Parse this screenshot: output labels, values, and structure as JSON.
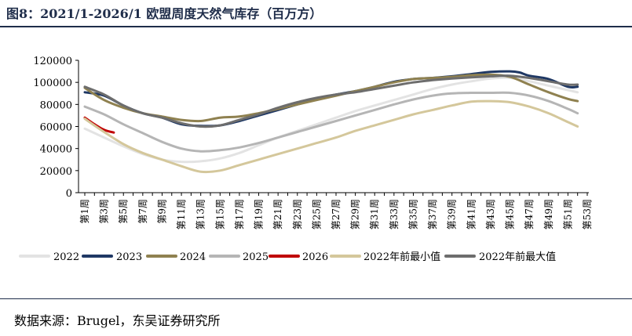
{
  "figure": {
    "title": "图8：2021/1-2026/1 欧盟周度天然气库存（百万方）",
    "source": "数据来源：Brugel，东吴证券研究所"
  },
  "chart_data": {
    "type": "line",
    "title": "",
    "xlabel": "",
    "ylabel": "",
    "ylim": [
      0,
      120000
    ],
    "yticks": [
      "0",
      "20000",
      "40000",
      "60000",
      "80000",
      "100000",
      "120000"
    ],
    "x_tick_labels": [
      "第1周",
      "第3周",
      "第5周",
      "第7周",
      "第9周",
      "第11周",
      "第13周",
      "第15周",
      "第17周",
      "第19周",
      "第21周",
      "第23周",
      "第25周",
      "第27周",
      "第29周",
      "第31周",
      "第33周",
      "第35周",
      "第37周",
      "第39周",
      "第41周",
      "第43周",
      "第45周",
      "第47周",
      "第49周",
      "第51周",
      "第53周"
    ],
    "x_week_range": [
      1,
      53
    ],
    "grid": false,
    "legend_position": "bottom",
    "series": [
      {
        "name": "2022",
        "color": "#e3e3e3",
        "width": 3,
        "weeks": [
          1,
          3,
          5,
          7,
          9,
          11,
          13,
          15,
          17,
          19,
          21,
          23,
          25,
          27,
          29,
          31,
          33,
          35,
          37,
          39,
          41,
          43,
          45,
          47,
          49,
          51,
          52
        ],
        "values": [
          58000,
          50000,
          42000,
          35000,
          30000,
          28000,
          28500,
          31000,
          36000,
          43000,
          50000,
          56000,
          62000,
          68000,
          74000,
          79000,
          84000,
          89000,
          94000,
          98000,
          101000,
          103500,
          104000,
          101000,
          97000,
          93000,
          91000
        ]
      },
      {
        "name": "2023",
        "color": "#1f3864",
        "width": 3,
        "weeks": [
          1,
          3,
          5,
          7,
          9,
          11,
          13,
          15,
          17,
          19,
          21,
          23,
          25,
          27,
          29,
          31,
          33,
          35,
          37,
          39,
          41,
          43,
          45,
          46,
          47,
          49,
          51,
          52
        ],
        "values": [
          91000,
          88000,
          79000,
          72000,
          68000,
          62000,
          60500,
          61000,
          65000,
          70000,
          75000,
          80000,
          85000,
          89000,
          92000,
          96000,
          100500,
          103000,
          104000,
          105500,
          107500,
          109500,
          110000,
          109000,
          106000,
          103000,
          96000,
          96000
        ]
      },
      {
        "name": "2024",
        "color": "#8f8150",
        "width": 3,
        "weeks": [
          1,
          3,
          5,
          7,
          9,
          11,
          13,
          15,
          17,
          19,
          21,
          23,
          25,
          27,
          29,
          31,
          33,
          35,
          37,
          39,
          41,
          43,
          45,
          47,
          49,
          51,
          52
        ],
        "values": [
          95000,
          84000,
          77000,
          72000,
          69000,
          66000,
          65000,
          68000,
          69000,
          72000,
          76000,
          80000,
          84000,
          88000,
          92000,
          96000,
          100000,
          103000,
          104000,
          105000,
          106500,
          107000,
          105000,
          98000,
          91000,
          85000,
          83000
        ]
      },
      {
        "name": "2025",
        "color": "#b5b5b5",
        "width": 3,
        "weeks": [
          1,
          3,
          5,
          7,
          9,
          11,
          13,
          15,
          17,
          19,
          21,
          23,
          25,
          27,
          29,
          31,
          33,
          35,
          37,
          39,
          41,
          43,
          45,
          47,
          49,
          51,
          52
        ],
        "values": [
          78000,
          71000,
          62000,
          54000,
          46000,
          40000,
          37500,
          38500,
          41000,
          45000,
          50000,
          55000,
          60000,
          65000,
          70000,
          75000,
          80000,
          84500,
          88000,
          90000,
          90500,
          90500,
          90500,
          88000,
          83000,
          76000,
          72000
        ]
      },
      {
        "name": "2026",
        "color": "#c00000",
        "width": 3,
        "weeks": [
          1,
          2,
          3,
          4
        ],
        "values": [
          68000,
          62000,
          57000,
          54500
        ]
      },
      {
        "name": "2022年前最小值",
        "color": "#d4c79b",
        "width": 3,
        "weeks": [
          1,
          3,
          5,
          7,
          9,
          11,
          13,
          15,
          17,
          19,
          21,
          23,
          25,
          27,
          29,
          31,
          33,
          35,
          37,
          39,
          41,
          43,
          45,
          47,
          49,
          51,
          52
        ],
        "values": [
          67000,
          55000,
          44000,
          36000,
          30000,
          24000,
          19000,
          20000,
          25000,
          30000,
          35000,
          40000,
          45000,
          50000,
          56000,
          61000,
          66000,
          71000,
          75000,
          79000,
          82500,
          83000,
          82000,
          78000,
          72000,
          64000,
          60000
        ]
      },
      {
        "name": "2022年前最大值",
        "color": "#6d6d6d",
        "width": 3,
        "weeks": [
          1,
          3,
          5,
          7,
          9,
          11,
          13,
          15,
          17,
          19,
          21,
          23,
          25,
          27,
          29,
          31,
          33,
          35,
          37,
          39,
          41,
          43,
          45,
          47,
          49,
          51,
          52
        ],
        "values": [
          96000,
          89000,
          79000,
          72000,
          68000,
          63000,
          60000,
          61000,
          66000,
          71000,
          77000,
          82000,
          86000,
          89000,
          91000,
          94000,
          97000,
          100000,
          102000,
          103500,
          104500,
          105500,
          106000,
          104000,
          101000,
          98000,
          98000
        ]
      }
    ]
  }
}
